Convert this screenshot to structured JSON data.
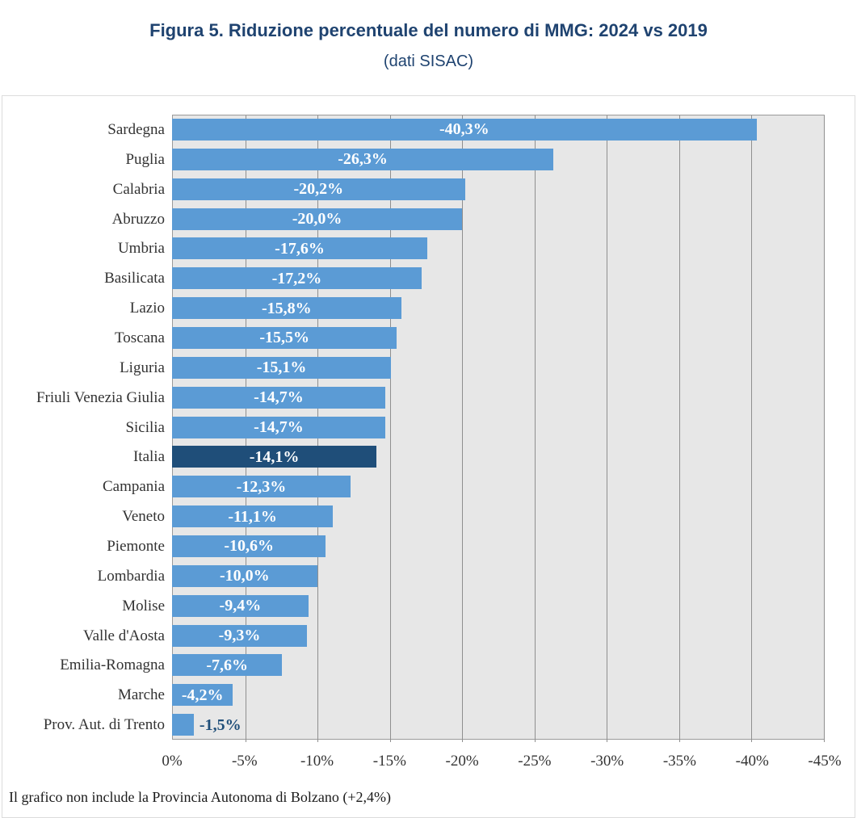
{
  "figure": {
    "title": "Figura 5. Riduzione percentuale del numero di MMG: 2024 vs 2019",
    "subtitle": "(dati SISAC)",
    "footnote": "Il grafico non include la Provincia Autonoma di Bolzano (+2,4%)"
  },
  "colors": {
    "bar": "#5B9BD5",
    "bar_highlight": "#1F4E79",
    "title_text": "#1F4370",
    "plot_background": "#E7E7E7",
    "gridline": "#8F8F8F",
    "value_label_inside": "#FFFFFF",
    "value_label_outside": "#1F4E79",
    "axis_text": "#333333",
    "frame_border": "#DCDCDC"
  },
  "chart_data": {
    "type": "bar",
    "orientation": "horizontal",
    "title": "Figura 5. Riduzione percentuale del numero di MMG: 2024 vs 2019",
    "subtitle": "(dati SISAC)",
    "xlabel": "",
    "ylabel": "",
    "legend": false,
    "x_axis": {
      "ticks": [
        "0%",
        "-5%",
        "-10%",
        "-15%",
        "-20%",
        "-25%",
        "-30%",
        "-35%",
        "-40%",
        "-45%"
      ],
      "range": [
        0,
        -45
      ],
      "grid": true,
      "grid_interval": 5
    },
    "categories": [
      "Sardegna",
      "Puglia",
      "Calabria",
      "Abruzzo",
      "Umbria",
      "Basilicata",
      "Lazio",
      "Toscana",
      "Liguria",
      "Friuli Venezia Giulia",
      "Sicilia",
      "Italia",
      "Campania",
      "Veneto",
      "Piemonte",
      "Lombardia",
      "Molise",
      "Valle d'Aosta",
      "Emilia-Romagna",
      "Marche",
      "Prov. Aut. di Trento"
    ],
    "values": [
      -40.3,
      -26.3,
      -20.2,
      -20.0,
      -17.6,
      -17.2,
      -15.8,
      -15.5,
      -15.1,
      -14.7,
      -14.7,
      -14.1,
      -12.3,
      -11.1,
      -10.6,
      -10.0,
      -9.4,
      -9.3,
      -7.6,
      -4.2,
      -1.5
    ],
    "value_labels": [
      "-40,3%",
      "-26,3%",
      "-20,2%",
      "-20,0%",
      "-17,6%",
      "-17,2%",
      "-15,8%",
      "-15,5%",
      "-15,1%",
      "-14,7%",
      "-14,7%",
      "-14,1%",
      "-12,3%",
      "-11,1%",
      "-10,6%",
      "-10,0%",
      "-9,4%",
      "-9,3%",
      "-7,6%",
      "-4,2%",
      "-1,5%"
    ],
    "highlight_category": "Italia",
    "outside_label_categories": [
      "Prov. Aut. di Trento"
    ]
  }
}
